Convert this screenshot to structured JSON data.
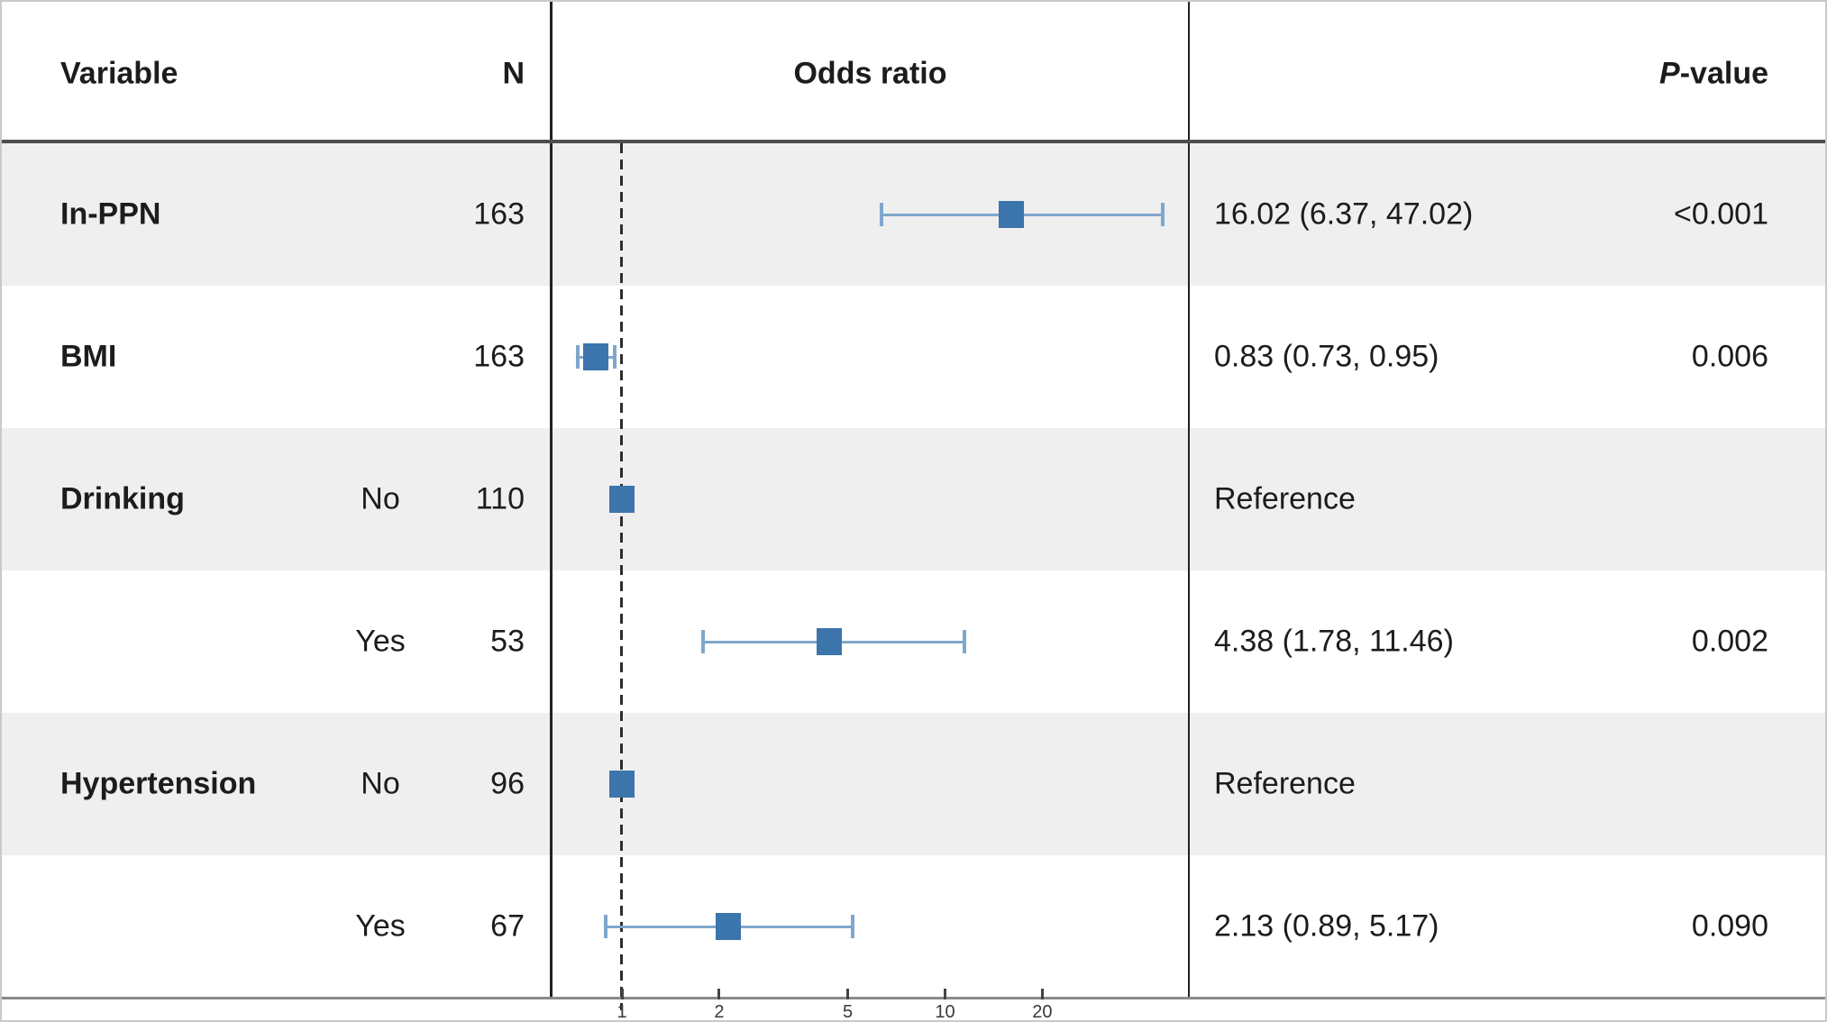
{
  "header": {
    "variable": "Variable",
    "n": "N",
    "odds_ratio": "Odds ratio",
    "p_italic": "P",
    "p_rest": "-value"
  },
  "colors": {
    "marker_fill": "#3c75ac",
    "marker_border": "#2f619413",
    "whisker": "#7fa7cc",
    "row_shade": "#efefef",
    "dashed_line": "#2d2d2d",
    "axis_line": "#8a8a8a"
  },
  "chart_data": {
    "type": "forest",
    "xscale": "log",
    "xlabel": "",
    "xticks": [
      1,
      2,
      5,
      10,
      20
    ],
    "reference_line": 1,
    "columns": [
      "Variable",
      "N",
      "Odds ratio",
      "P-value"
    ],
    "rows": [
      {
        "variable": "In-PPN",
        "level": "",
        "n": "163",
        "or": 16.02,
        "ci_low": 6.37,
        "ci_high": 47.02,
        "or_label": "16.02 (6.37, 47.02)",
        "p_value": "<0.001",
        "reference": false,
        "shaded": true
      },
      {
        "variable": "BMI",
        "level": "",
        "n": "163",
        "or": 0.83,
        "ci_low": 0.73,
        "ci_high": 0.95,
        "or_label": "0.83 (0.73, 0.95)",
        "p_value": "0.006",
        "reference": false,
        "shaded": false
      },
      {
        "variable": "Drinking",
        "level": "No",
        "n": "110",
        "or": 1.0,
        "ci_low": null,
        "ci_high": null,
        "or_label": "Reference",
        "p_value": "",
        "reference": true,
        "shaded": true
      },
      {
        "variable": "",
        "level": "Yes",
        "n": "53",
        "or": 4.38,
        "ci_low": 1.78,
        "ci_high": 11.46,
        "or_label": "4.38 (1.78, 11.46)",
        "p_value": "0.002",
        "reference": false,
        "shaded": false
      },
      {
        "variable": "Hypertension",
        "level": "No",
        "n": "96",
        "or": 1.0,
        "ci_low": null,
        "ci_high": null,
        "or_label": "Reference",
        "p_value": "",
        "reference": true,
        "shaded": true
      },
      {
        "variable": "",
        "level": "Yes",
        "n": "67",
        "or": 2.13,
        "ci_low": 0.89,
        "ci_high": 5.17,
        "or_label": "2.13 (0.89, 5.17)",
        "p_value": "0.090",
        "reference": false,
        "shaded": false
      }
    ]
  }
}
